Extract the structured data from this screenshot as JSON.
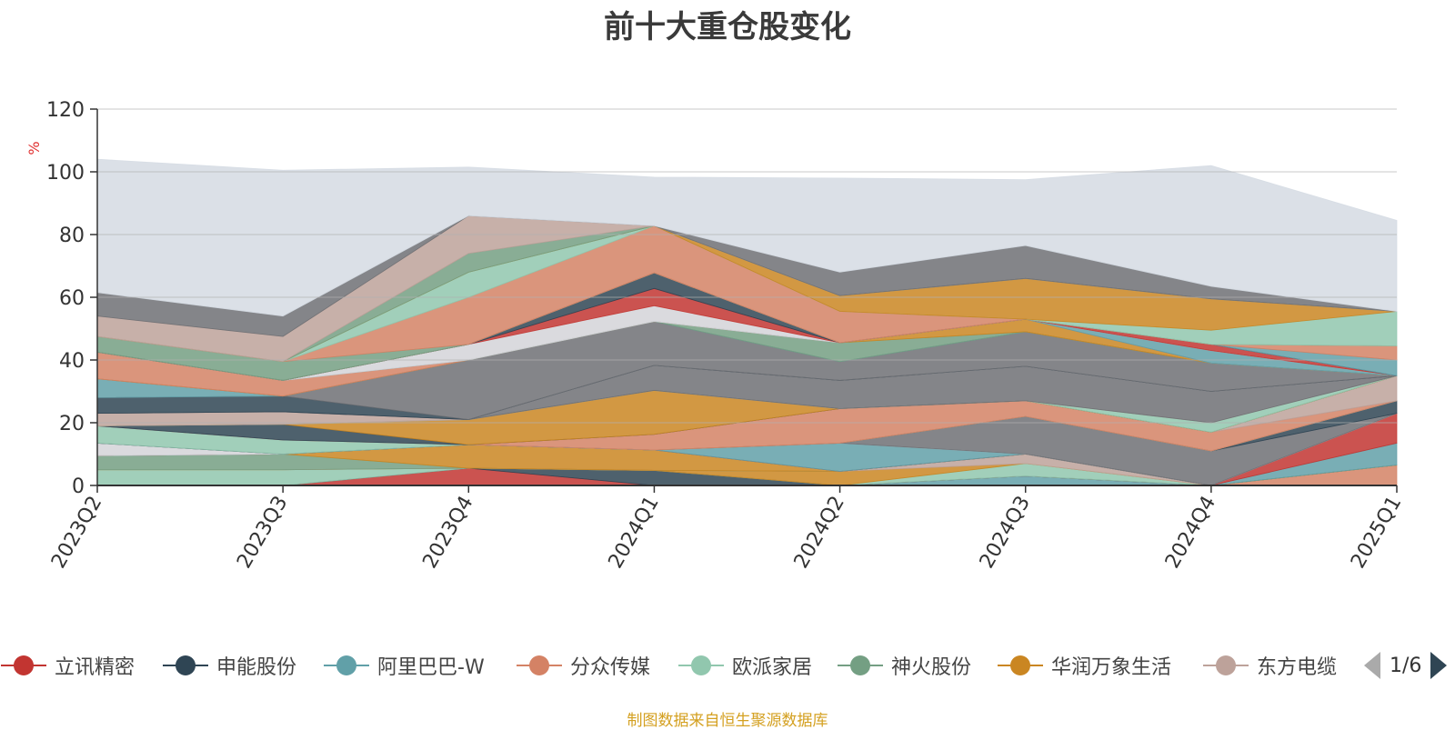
{
  "title": "前十大重仓股变化",
  "source_note": "制图数据来自恒生聚源数据库",
  "pager": {
    "text": "1/6",
    "prev_icon": "triangle-left-icon",
    "next_icon": "triangle-right-icon"
  },
  "legend": [
    {
      "name": "立讯精密",
      "color": "#c23531"
    },
    {
      "name": "申能股份",
      "color": "#2f4554"
    },
    {
      "name": "阿里巴巴-W",
      "color": "#61a0a8"
    },
    {
      "name": "分众传媒",
      "color": "#d48265"
    },
    {
      "name": "欧派家居",
      "color": "#91c7ae"
    },
    {
      "name": "神火股份",
      "color": "#749f83"
    },
    {
      "name": "华润万象生活",
      "color": "#ca8622"
    },
    {
      "name": "东方电缆",
      "color": "#bda29a"
    }
  ],
  "chart_data": {
    "type": "area",
    "stacked": true,
    "title": "前十大重仓股变化",
    "ylabel": "%",
    "ylim": [
      0,
      120
    ],
    "yticks": [
      0,
      20,
      40,
      60,
      80,
      100,
      120
    ],
    "grid": true,
    "categories": [
      "2023Q2",
      "2023Q3",
      "2023Q4",
      "2024Q1",
      "2024Q2",
      "2024Q3",
      "2024Q4",
      "2025Q1"
    ],
    "series": [
      {
        "color": "#d48265",
        "values": [
          0,
          0,
          0,
          0,
          0,
          0,
          0,
          6.5
        ]
      },
      {
        "color": "#61a0a8",
        "values": [
          0,
          0,
          0,
          0,
          0,
          3,
          0,
          0
        ]
      },
      {
        "color": "#c23531",
        "values": [
          0,
          0,
          5.5,
          0,
          0,
          0,
          0,
          0
        ]
      },
      {
        "color": "#2f4554",
        "values": [
          0,
          0,
          0,
          4.8,
          0,
          0,
          0,
          0
        ]
      },
      {
        "color": "#91c7ae",
        "values": [
          5,
          5,
          0,
          0,
          0,
          4,
          0,
          0
        ]
      },
      {
        "color": "#ca8622",
        "values": [
          0,
          0,
          0,
          0,
          4.5,
          0,
          0,
          0
        ]
      },
      {
        "color": "#bda29a",
        "values": [
          0,
          0,
          0,
          0,
          0,
          3,
          0,
          0
        ]
      },
      {
        "color": "#749f83",
        "values": [
          4.5,
          5,
          0,
          0,
          0,
          0,
          0,
          0
        ]
      },
      {
        "color": "#ca8622",
        "values": [
          0,
          0,
          7.5,
          6.5,
          0,
          0,
          0,
          0
        ]
      },
      {
        "color": "#61a0a8",
        "values": [
          0,
          0,
          0,
          0,
          0,
          0,
          0,
          7
        ]
      },
      {
        "color": "#c23531",
        "values": [
          0,
          0,
          0,
          0,
          0,
          0,
          0,
          9.5
        ]
      },
      {
        "color": "#61a0a8",
        "values": [
          0,
          0,
          0,
          0,
          9,
          0,
          0,
          0
        ]
      },
      {
        "color": "#d4d4d8",
        "values": [
          4,
          0,
          0,
          0,
          0,
          0,
          0,
          0
        ]
      },
      {
        "color": "#6e7074",
        "values": [
          0,
          0,
          0,
          0,
          0,
          12,
          11,
          0
        ]
      },
      {
        "color": "#2f4554",
        "values": [
          0,
          0,
          0,
          0,
          0,
          0,
          0,
          4
        ]
      },
      {
        "color": "#91c7ae",
        "values": [
          5.5,
          4.5,
          0,
          0,
          0,
          0,
          0,
          0
        ]
      },
      {
        "color": "#d48265",
        "values": [
          0,
          0,
          0,
          5,
          11,
          5,
          6,
          0
        ]
      },
      {
        "color": "#bda29a",
        "values": [
          0,
          0,
          0,
          0,
          0,
          0,
          0,
          8
        ]
      },
      {
        "color": "#2f4554",
        "values": [
          0,
          5,
          0,
          0,
          0,
          0,
          0,
          0
        ]
      },
      {
        "color": "#ca8622",
        "values": [
          0,
          0,
          8,
          14,
          0,
          0,
          0,
          0
        ]
      },
      {
        "color": "#91c7ae",
        "values": [
          0,
          0,
          0,
          0,
          0,
          0,
          3,
          0
        ]
      },
      {
        "color": "#bda29a",
        "values": [
          4,
          4,
          0,
          0,
          0,
          0,
          0,
          0
        ]
      },
      {
        "color": "#6e7074",
        "values": [
          0,
          0,
          0,
          8,
          9,
          11,
          10,
          0
        ]
      },
      {
        "color": "#2f4554",
        "values": [
          5,
          5,
          0,
          0,
          0,
          0,
          0,
          0
        ]
      },
      {
        "color": "#6e7074",
        "values": [
          0,
          0,
          19,
          14,
          6,
          11,
          9,
          0
        ]
      },
      {
        "color": "#61a0a8",
        "values": [
          6,
          0,
          0,
          0,
          0,
          0,
          0,
          0
        ]
      },
      {
        "color": "#749f83",
        "values": [
          0,
          0,
          0,
          0,
          6,
          0,
          0,
          0
        ]
      },
      {
        "color": "#ca8622",
        "values": [
          0,
          0,
          0,
          0,
          0,
          4,
          0,
          0
        ]
      },
      {
        "color": "#d48265",
        "values": [
          8.5,
          5,
          0,
          0,
          0,
          0,
          0,
          0
        ]
      },
      {
        "color": "#61a0a8",
        "values": [
          0,
          0,
          0,
          0,
          0,
          0,
          4,
          0
        ]
      },
      {
        "color": "#d4d4d8",
        "values": [
          0,
          0,
          5,
          5,
          0,
          0,
          0,
          0
        ]
      },
      {
        "color": "#c23531",
        "values": [
          0,
          0,
          0,
          5.5,
          0,
          0,
          2,
          0
        ]
      },
      {
        "color": "#2f4554",
        "values": [
          0,
          0,
          0,
          5,
          0,
          0,
          0,
          0
        ]
      },
      {
        "color": "#61a0a8",
        "values": [
          0,
          0,
          0,
          0,
          0,
          0,
          0,
          5
        ]
      },
      {
        "color": "#d48265",
        "values": [
          0,
          0,
          0,
          0,
          0,
          0,
          0,
          4.5
        ]
      },
      {
        "color": "#749f83",
        "values": [
          5,
          6,
          0,
          0,
          0,
          0,
          0,
          0
        ]
      },
      {
        "color": "#d48265",
        "values": [
          0,
          0,
          15,
          15,
          10,
          0,
          0,
          0
        ]
      },
      {
        "color": "#91c7ae",
        "values": [
          0,
          0,
          8,
          0,
          0,
          0,
          4.5,
          11
        ]
      },
      {
        "color": "#ca8622",
        "values": [
          0,
          0,
          0,
          0,
          5,
          13,
          10,
          0
        ]
      },
      {
        "color": "#749f83",
        "values": [
          0,
          0,
          6,
          0,
          0,
          0,
          0,
          0
        ]
      },
      {
        "color": "#bda29a",
        "values": [
          6.5,
          8,
          12,
          0,
          0,
          0,
          0,
          0
        ]
      },
      {
        "color": "#6e7074",
        "values": [
          7.5,
          6.5,
          0,
          0,
          7.5,
          10.5,
          4,
          0
        ]
      },
      {
        "color": "#d5dbe3",
        "values": [
          42.5,
          46.5,
          15.5,
          15.5,
          30,
          21,
          38.5,
          29
        ]
      }
    ]
  }
}
